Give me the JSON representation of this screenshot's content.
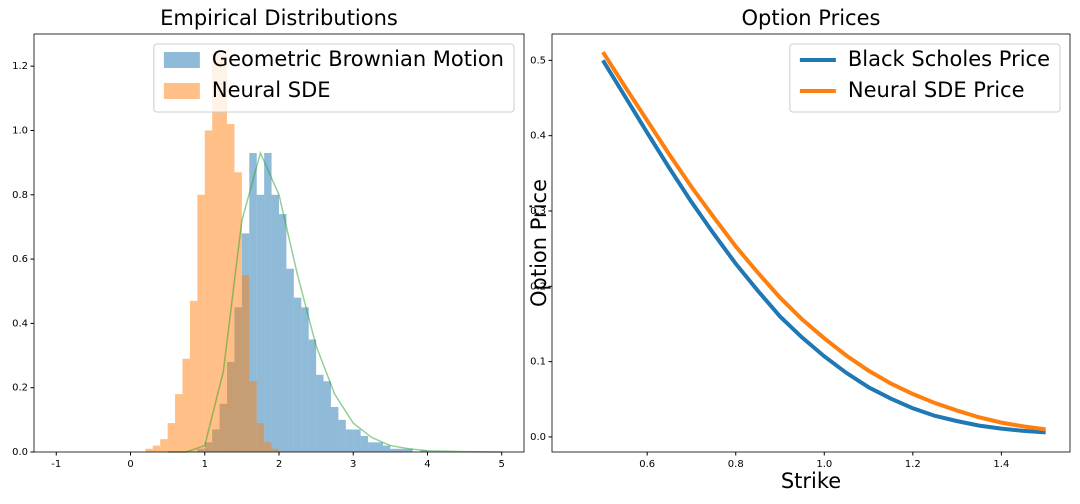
{
  "chart_data": [
    {
      "type": "histogram",
      "title": "Empirical Distributions",
      "xlim": [
        -1.3,
        5.3
      ],
      "ylim": [
        0,
        1.3
      ],
      "xticks": [
        -1,
        0,
        1,
        2,
        3,
        4,
        5
      ],
      "yticks": [
        {
          "value": 0,
          "label": "0.0"
        },
        0.2,
        0.4,
        0.6,
        0.8,
        {
          "value": 1,
          "label": "1.0"
        },
        1.2
      ],
      "alpha": 0.5,
      "legend": "upper right",
      "series": [
        {
          "name": "Geometric Brownian Motion",
          "color": "#1f77b4",
          "bins": [
            0.8,
            0.9,
            1.0,
            1.1,
            1.2,
            1.3,
            1.4,
            1.5,
            1.6,
            1.7,
            1.8,
            1.9,
            2.0,
            2.1,
            2.2,
            2.3,
            2.4,
            2.5,
            2.6,
            2.7,
            2.8,
            2.9,
            3.0,
            3.1,
            3.2,
            3.3,
            3.4,
            3.5,
            3.6,
            3.7,
            3.8,
            3.9,
            4.0
          ],
          "values": [
            0.0,
            0.01,
            0.03,
            0.07,
            0.15,
            0.28,
            0.45,
            0.68,
            0.93,
            0.8,
            0.93,
            0.8,
            0.74,
            0.57,
            0.48,
            0.45,
            0.35,
            0.24,
            0.22,
            0.14,
            0.1,
            0.07,
            0.07,
            0.05,
            0.03,
            0.03,
            0.02,
            0.01,
            0.01,
            0.01,
            0.0,
            0.005
          ]
        },
        {
          "name": "Neural SDE",
          "color": "#ff7f0e",
          "bins": [
            0.2,
            0.3,
            0.4,
            0.5,
            0.6,
            0.7,
            0.8,
            0.9,
            1.0,
            1.1,
            1.2,
            1.3,
            1.4,
            1.5,
            1.6,
            1.7,
            1.8,
            1.9,
            2.0
          ],
          "values": [
            0.01,
            0.02,
            0.04,
            0.09,
            0.18,
            0.29,
            0.47,
            0.8,
            1.0,
            1.24,
            1.24,
            1.02,
            0.87,
            0.55,
            0.22,
            0.09,
            0.03,
            0.01
          ]
        }
      ],
      "density": {
        "color": "#2ca02c",
        "x": [
          0.5,
          0.75,
          1.0,
          1.25,
          1.5,
          1.75,
          2.0,
          2.25,
          2.5,
          2.75,
          3.0,
          3.25,
          3.5,
          3.75,
          4.0,
          4.5,
          5.0
        ],
        "values": [
          0,
          0,
          0.02,
          0.25,
          0.72,
          0.93,
          0.8,
          0.55,
          0.33,
          0.18,
          0.09,
          0.045,
          0.02,
          0.01,
          0.004,
          0.001,
          0
        ]
      }
    },
    {
      "type": "line",
      "title": "Option Prices",
      "xlabel": "Strike",
      "ylabel": "Option Price",
      "xlim": [
        0.385,
        1.555
      ],
      "ylim": [
        -0.02,
        0.535
      ],
      "xticks": [
        0.6,
        0.8,
        {
          "value": 1,
          "label": "1.0"
        },
        1.2,
        1.4
      ],
      "yticks": [
        {
          "value": 0,
          "label": "0.0"
        },
        0.1,
        0.2,
        0.3,
        0.4,
        0.5
      ],
      "legend": "upper right",
      "x": [
        0.5,
        0.55,
        0.6,
        0.65,
        0.7,
        0.75,
        0.8,
        0.85,
        0.9,
        0.95,
        1.0,
        1.05,
        1.1,
        1.15,
        1.2,
        1.25,
        1.3,
        1.35,
        1.4,
        1.45,
        1.5
      ],
      "series": [
        {
          "name": "Black Scholes Price",
          "color": "#1f77b4",
          "values": [
            0.5,
            0.452,
            0.404,
            0.357,
            0.312,
            0.27,
            0.23,
            0.194,
            0.16,
            0.132,
            0.107,
            0.085,
            0.066,
            0.051,
            0.038,
            0.028,
            0.021,
            0.015,
            0.011,
            0.008,
            0.006
          ]
        },
        {
          "name": "Neural SDE Price",
          "color": "#ff7f0e",
          "values": [
            0.511,
            0.465,
            0.42,
            0.375,
            0.332,
            0.292,
            0.253,
            0.218,
            0.185,
            0.156,
            0.131,
            0.108,
            0.088,
            0.071,
            0.057,
            0.045,
            0.035,
            0.026,
            0.019,
            0.014,
            0.01
          ]
        }
      ]
    }
  ]
}
